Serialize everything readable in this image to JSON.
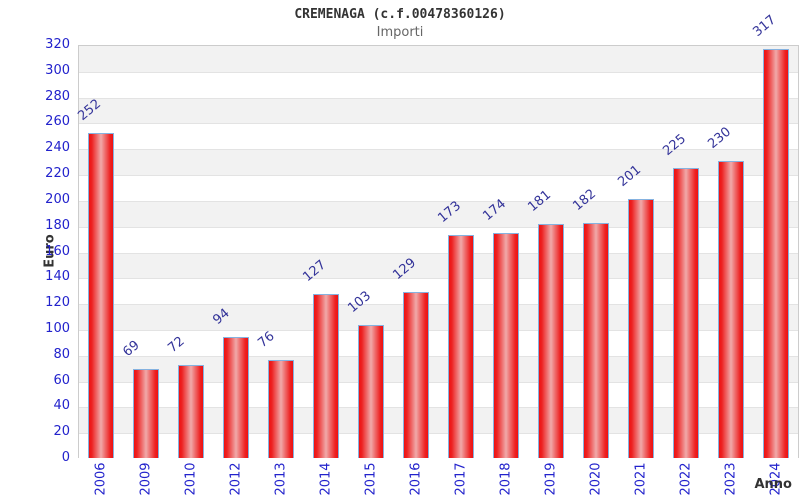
{
  "chart_data": {
    "type": "bar",
    "title": "CREMENAGA (c.f.00478360126)",
    "subtitle": "Importi",
    "xlabel": "Anno",
    "ylabel": "Euro",
    "categories": [
      "2006",
      "2009",
      "2010",
      "2012",
      "2013",
      "2014",
      "2015",
      "2016",
      "2017",
      "2018",
      "2019",
      "2020",
      "2021",
      "2022",
      "2023",
      "2024"
    ],
    "values": [
      252,
      69,
      72,
      94,
      76,
      127,
      103,
      129,
      173,
      174,
      181,
      182,
      201,
      225,
      230,
      317
    ],
    "ylim": [
      0,
      320
    ],
    "ytick_step": 20,
    "grid": "horizontal alternating bands",
    "legend_position": "none",
    "colors": {
      "bar_fill_edge": "#ee1111",
      "bar_fill_center": "#f0a9a9",
      "bar_border": "#85b2e0",
      "axis_tick_label": "#2222cc",
      "value_label": "#333399",
      "band_gray": "#f2f2f2",
      "band_white": "#ffffff",
      "plot_border": "#cccccc",
      "title_color": "#333333",
      "subtitle_color": "#666666"
    }
  }
}
